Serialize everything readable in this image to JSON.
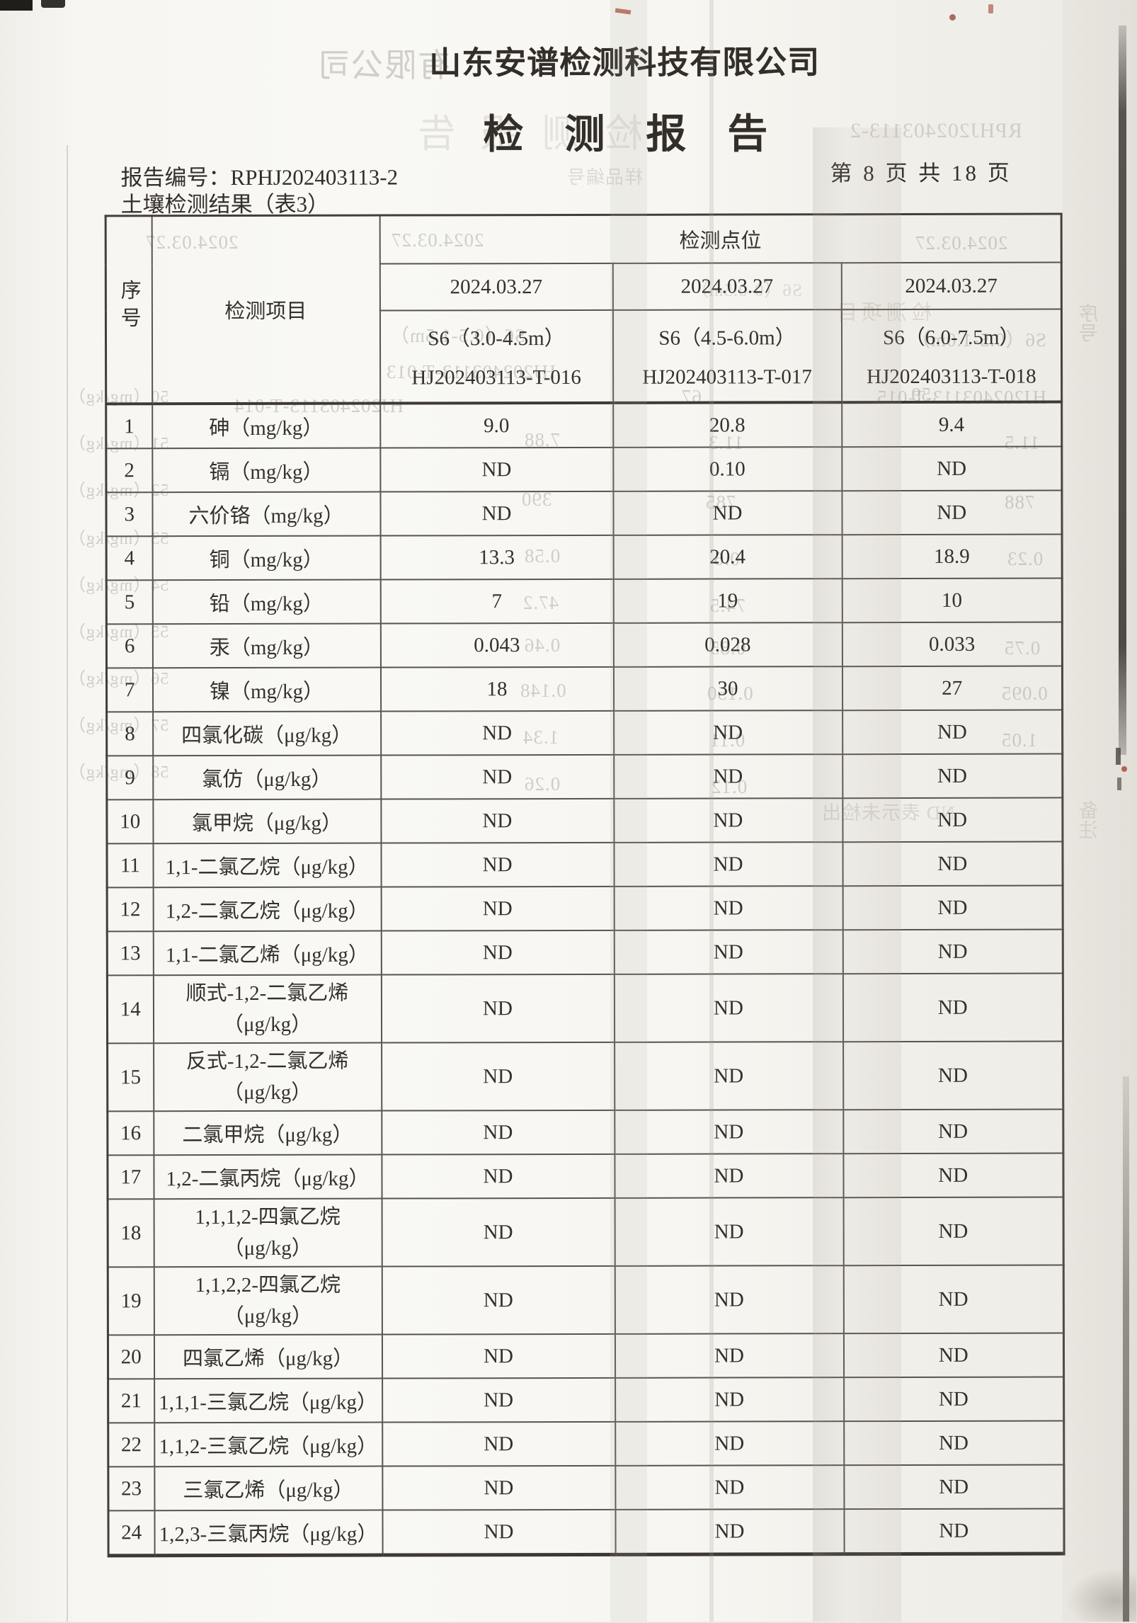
{
  "document": {
    "company": "山东安谱检测科技有限公司",
    "title": "检测报告",
    "report_no_label": "报告编号：",
    "report_no": "RPHJ202403113-2",
    "page_indicator": "第 8 页 共 18 页",
    "table_caption": "土壤检测结果（表3）"
  },
  "table": {
    "seq_header": "序号",
    "item_header": "检测项目",
    "points_header": "检测点位",
    "columns": [
      {
        "date": "2024.03.27",
        "sample": "S6（3.0-4.5m）",
        "code": "HJ202403113-T-016"
      },
      {
        "date": "2024.03.27",
        "sample": "S6（4.5-6.0m）",
        "code": "HJ202403113-T-017"
      },
      {
        "date": "2024.03.27",
        "sample": "S6（6.0-7.5m）",
        "code": "HJ202403113-T-018"
      }
    ],
    "rows": [
      {
        "no": "1",
        "item": "砷（mg/kg）",
        "values": [
          "9.0",
          "20.8",
          "9.4"
        ]
      },
      {
        "no": "2",
        "item": "镉（mg/kg）",
        "values": [
          "ND",
          "0.10",
          "ND"
        ]
      },
      {
        "no": "3",
        "item": "六价铬（mg/kg）",
        "values": [
          "ND",
          "ND",
          "ND"
        ]
      },
      {
        "no": "4",
        "item": "铜（mg/kg）",
        "values": [
          "13.3",
          "20.4",
          "18.9"
        ]
      },
      {
        "no": "5",
        "item": "铅（mg/kg）",
        "values": [
          "7",
          "19",
          "10"
        ]
      },
      {
        "no": "6",
        "item": "汞（mg/kg）",
        "values": [
          "0.043",
          "0.028",
          "0.033"
        ]
      },
      {
        "no": "7",
        "item": "镍（mg/kg）",
        "values": [
          "18",
          "30",
          "27"
        ]
      },
      {
        "no": "8",
        "item": "四氯化碳（μg/kg）",
        "values": [
          "ND",
          "ND",
          "ND"
        ]
      },
      {
        "no": "9",
        "item": "氯仿（μg/kg）",
        "values": [
          "ND",
          "ND",
          "ND"
        ]
      },
      {
        "no": "10",
        "item": "氯甲烷（μg/kg）",
        "values": [
          "ND",
          "ND",
          "ND"
        ]
      },
      {
        "no": "11",
        "item": "1,1-二氯乙烷（μg/kg）",
        "values": [
          "ND",
          "ND",
          "ND"
        ]
      },
      {
        "no": "12",
        "item": "1,2-二氯乙烷（μg/kg）",
        "values": [
          "ND",
          "ND",
          "ND"
        ]
      },
      {
        "no": "13",
        "item": "1,1-二氯乙烯（μg/kg）",
        "values": [
          "ND",
          "ND",
          "ND"
        ]
      },
      {
        "no": "14",
        "item": "顺式-1,2-二氯乙烯\n（μg/kg）",
        "values": [
          "ND",
          "ND",
          "ND"
        ]
      },
      {
        "no": "15",
        "item": "反式-1,2-二氯乙烯\n（μg/kg）",
        "values": [
          "ND",
          "ND",
          "ND"
        ]
      },
      {
        "no": "16",
        "item": "二氯甲烷（μg/kg）",
        "values": [
          "ND",
          "ND",
          "ND"
        ]
      },
      {
        "no": "17",
        "item": "1,2-二氯丙烷（μg/kg）",
        "values": [
          "ND",
          "ND",
          "ND"
        ]
      },
      {
        "no": "18",
        "item": "1,1,1,2-四氯乙烷\n（μg/kg）",
        "values": [
          "ND",
          "ND",
          "ND"
        ]
      },
      {
        "no": "19",
        "item": "1,1,2,2-四氯乙烷\n（μg/kg）",
        "values": [
          "ND",
          "ND",
          "ND"
        ]
      },
      {
        "no": "20",
        "item": "四氯乙烯（μg/kg）",
        "values": [
          "ND",
          "ND",
          "ND"
        ]
      },
      {
        "no": "21",
        "item": "1,1,1-三氯乙烷（μg/kg）",
        "values": [
          "ND",
          "ND",
          "ND"
        ]
      },
      {
        "no": "22",
        "item": "1,1,2-三氯乙烷（μg/kg）",
        "values": [
          "ND",
          "ND",
          "ND"
        ]
      },
      {
        "no": "23",
        "item": "三氯乙烯（μg/kg）",
        "values": [
          "ND",
          "ND",
          "ND"
        ]
      },
      {
        "no": "24",
        "item": "1,2,3-三氯丙烷（μg/kg）",
        "values": [
          "ND",
          "ND",
          "ND"
        ]
      }
    ]
  },
  "bleedthrough": {
    "items": [
      "有限公司",
      "检测报告",
      "RPHJ202403113-2",
      "样品编号",
      "2024.03.27",
      "2024.03.27",
      "2024.03.27",
      "S6（0-0.5m）",
      "S6（0.5-1.5m）",
      "S6（0.5-1.0m）",
      "HJ202403113-T-013",
      "HJ202403113-T-014",
      "HJ202403113-T-015",
      "检测项目",
      "序号",
      "50（mg/kg）",
      "51（mg/kg）",
      "52（mg/kg）",
      "53（mg/kg）",
      "54（mg/kg）",
      "55（mg/kg）",
      "56（mg/kg）",
      "57（mg/kg）",
      "58（mg/kg）",
      "67",
      "59",
      "7.88",
      "11.3",
      "11.5",
      "390",
      "785",
      "788",
      "0.58",
      "0.6",
      "0.23",
      "47.2",
      "74.5",
      "0.46",
      "0.85",
      "0.75",
      "0.148",
      "0.150",
      "0.095",
      "1.34",
      "0.11",
      "1.05",
      "0.26",
      "0.12",
      "ND 表示未检出",
      "备注"
    ]
  }
}
